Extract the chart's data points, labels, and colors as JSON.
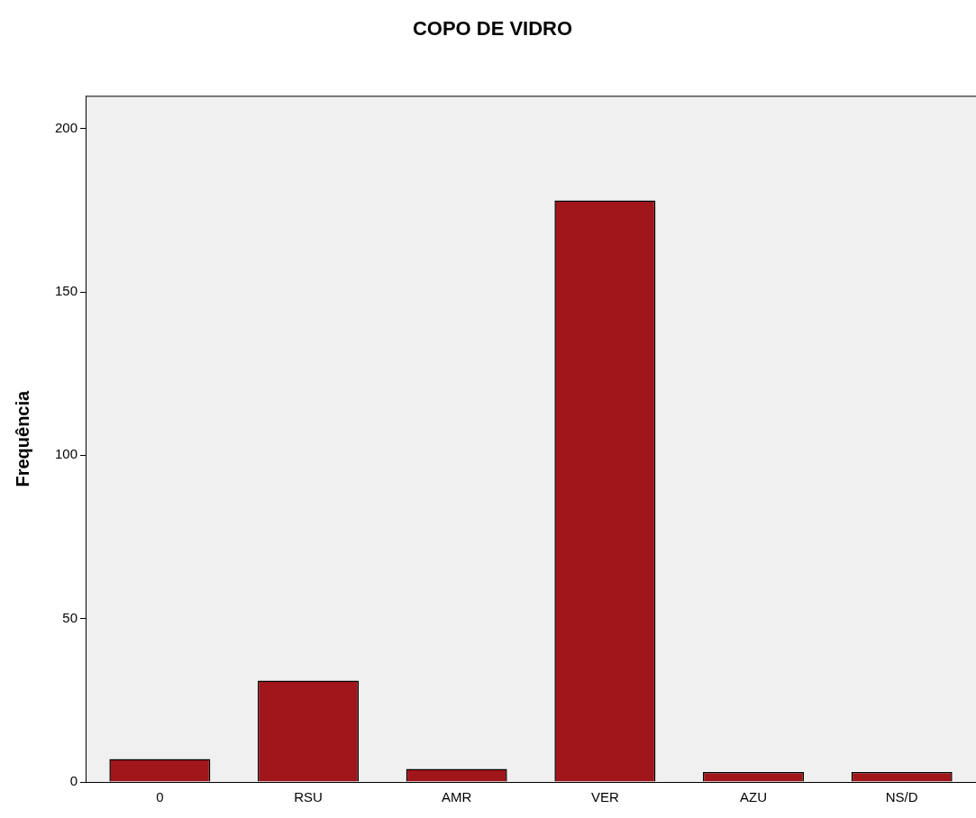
{
  "chart_data": {
    "type": "bar",
    "title": "COPO DE VIDRO",
    "ylabel": "Frequência",
    "categories": [
      "0",
      "RSU",
      "AMR",
      "VER",
      "AZU",
      "NS/D"
    ],
    "values": [
      7,
      31,
      4,
      178,
      3,
      3
    ],
    "color": "#a0161a",
    "ylim": [
      0,
      210
    ],
    "yticks": [
      0,
      50,
      100,
      150,
      200
    ],
    "grid": false,
    "legend": false
  }
}
